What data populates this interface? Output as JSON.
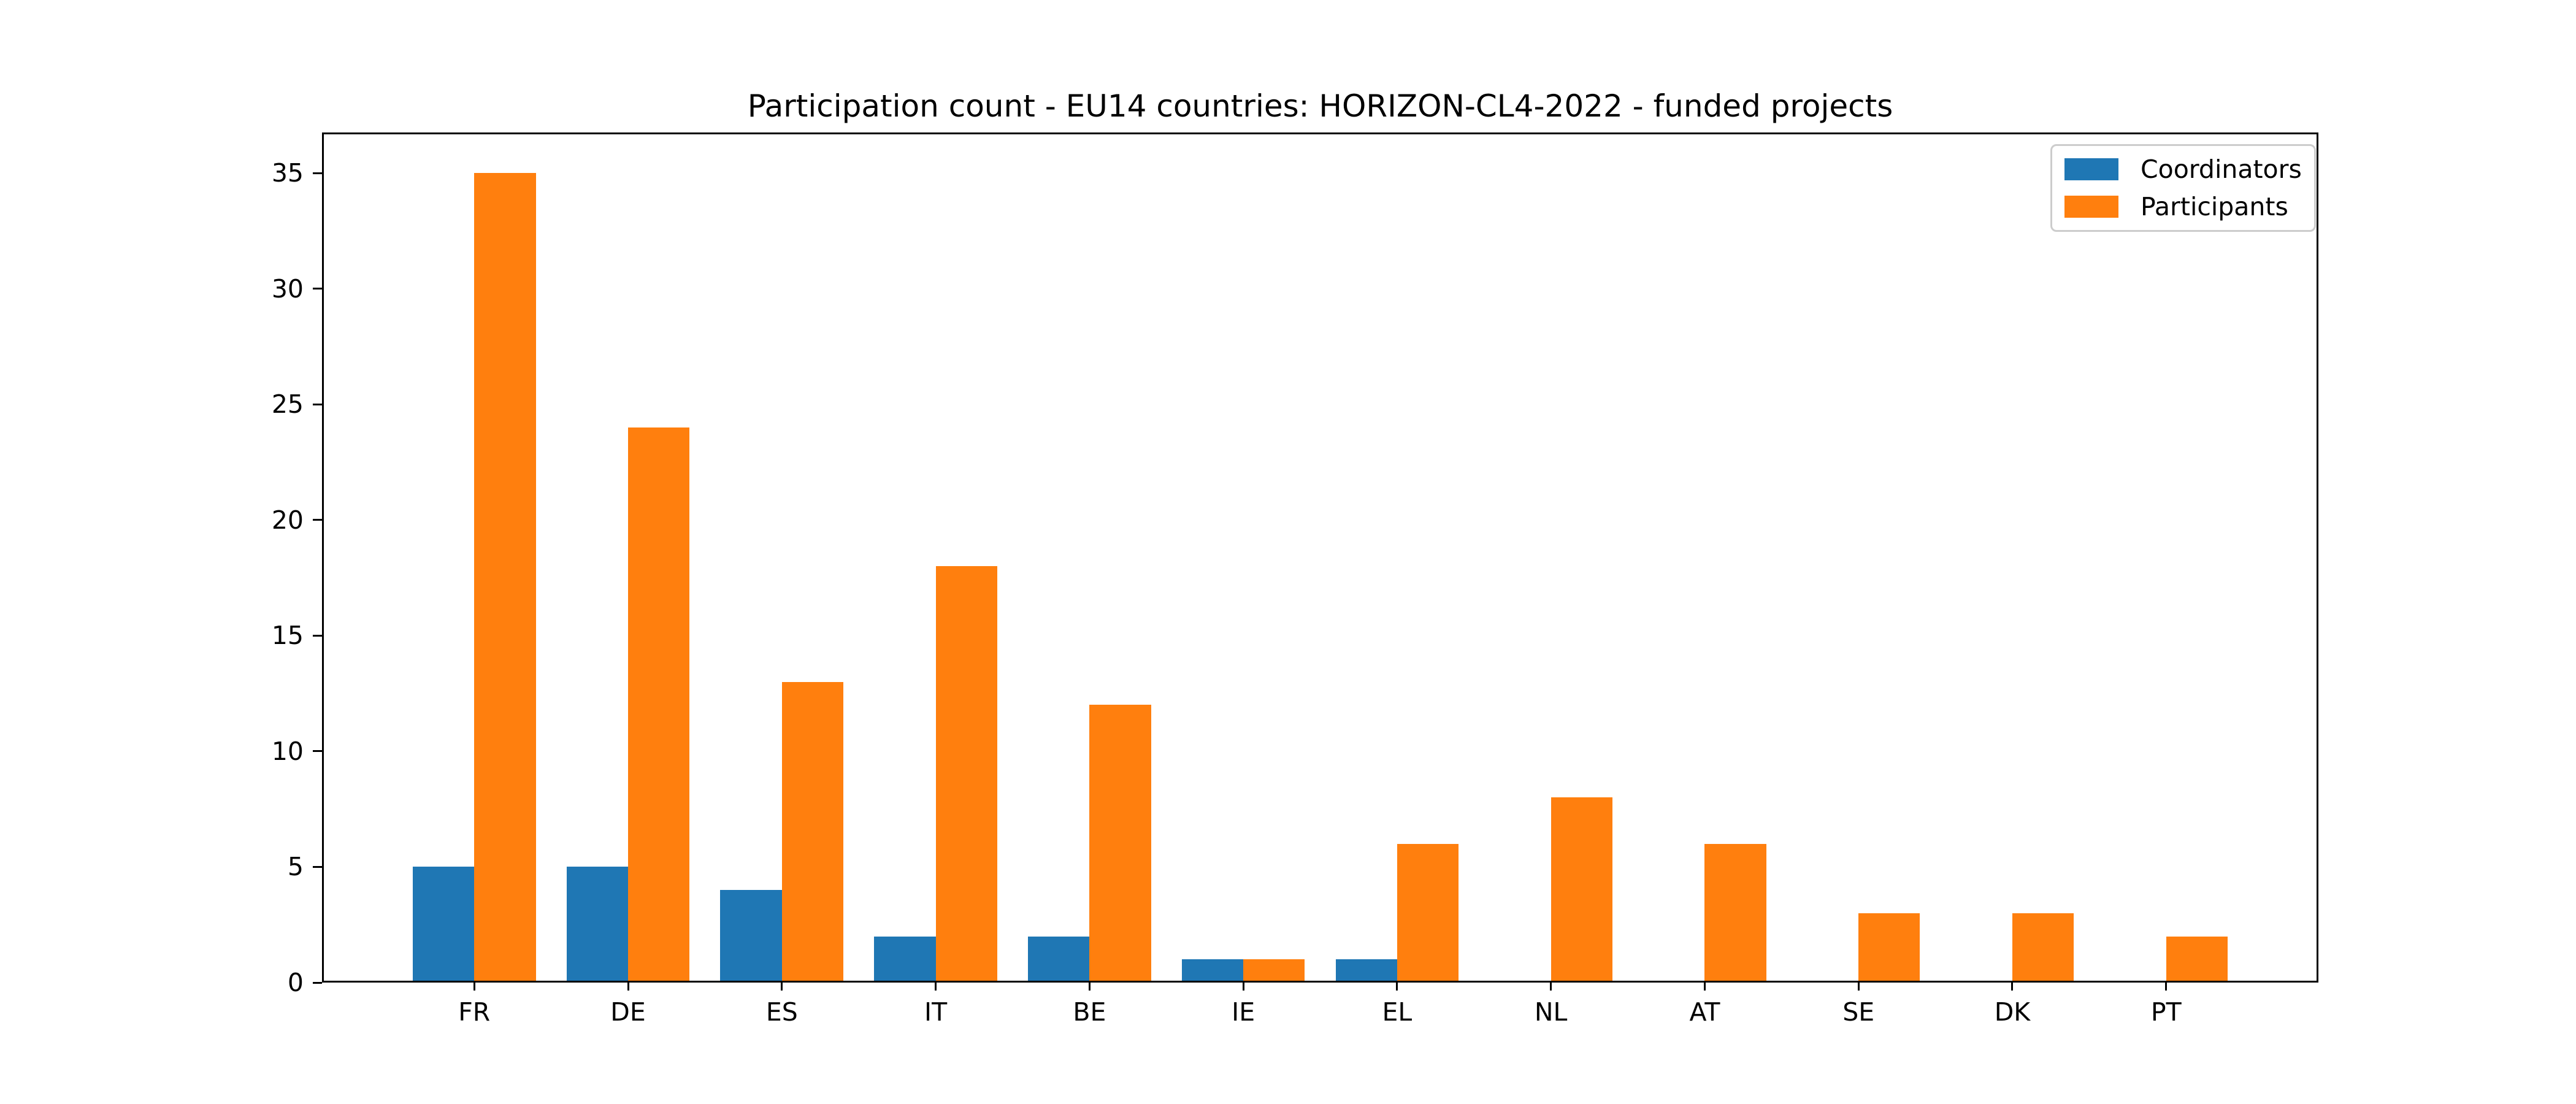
{
  "chart_data": {
    "type": "bar",
    "title": "Participation count - EU14 countries: HORIZON-CL4-2022 - funded projects",
    "xlabel": "",
    "ylabel": "",
    "categories": [
      "FR",
      "DE",
      "ES",
      "IT",
      "BE",
      "IE",
      "EL",
      "NL",
      "AT",
      "SE",
      "DK",
      "PT"
    ],
    "series": [
      {
        "name": "Coordinators",
        "color": "#1f77b4",
        "values": [
          5,
          5,
          4,
          2,
          2,
          1,
          1,
          0,
          0,
          0,
          0,
          0
        ]
      },
      {
        "name": "Participants",
        "color": "#ff7f0e",
        "values": [
          35,
          24,
          13,
          18,
          12,
          1,
          6,
          8,
          6,
          3,
          3,
          2
        ]
      }
    ],
    "bar_width": 0.4,
    "ylim": [
      0,
      36.75
    ],
    "yticks": [
      0,
      5,
      10,
      15,
      20,
      25,
      30,
      35
    ],
    "grid": false,
    "legend_position": "upper right",
    "colors": {
      "spine": "#000000",
      "legend_border": "#cccccc",
      "background": "#ffffff"
    }
  }
}
